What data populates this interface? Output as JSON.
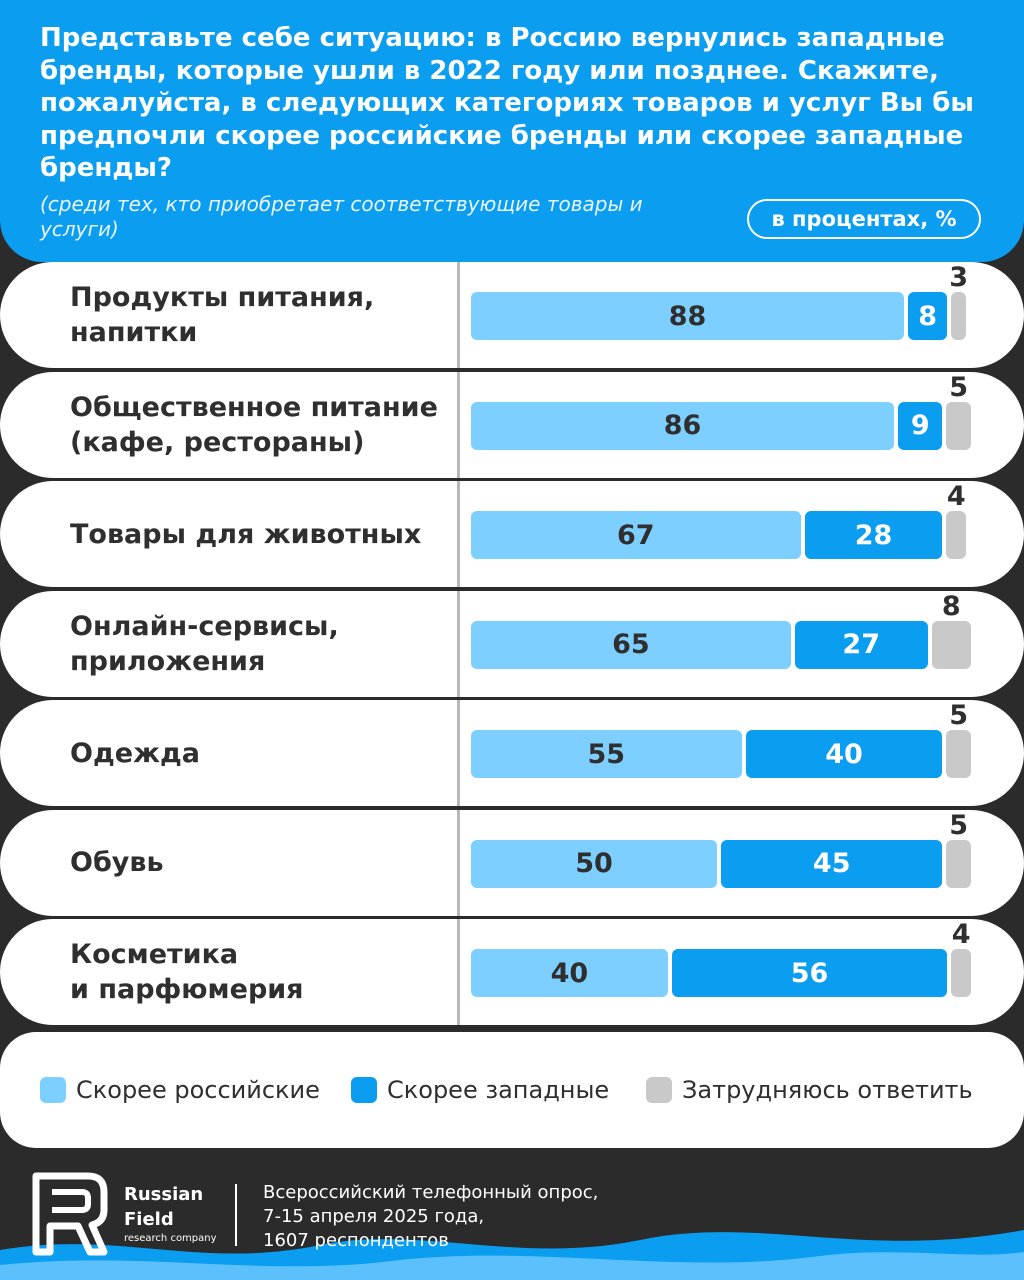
{
  "header": {
    "question": "Представьте себе ситуацию: в Россию вернулись западные бренды, которые ушли в 2022 году или позднее. Скажите, пожалуйста, в следующих категориях товаров и услуг Вы бы предпочли скорее российские бренды или скорее западные бренды?",
    "note": "(среди тех, кто приобретает соответствующие товары и услуги)",
    "unit": "в процентах, %"
  },
  "chart_data": {
    "type": "bar",
    "orientation": "horizontal-stacked",
    "categories": [
      "Продукты питания,\nнапитки",
      "Общественное питание\n(кафе, рестораны)",
      "Товары для животных",
      "Онлайн-сервисы,\nприложения",
      "Одежда",
      "Обувь",
      "Косметика\nи парфюмерия"
    ],
    "series": [
      {
        "name": "Скорее российские",
        "color": "#7dcfff",
        "values": [
          88,
          86,
          67,
          65,
          55,
          50,
          40
        ]
      },
      {
        "name": "Скорее западные",
        "color": "#0a9df0",
        "values": [
          8,
          9,
          28,
          27,
          40,
          45,
          56
        ]
      },
      {
        "name": "Затрудняюсь ответить",
        "color": "#c9c9c9",
        "values": [
          3,
          5,
          4,
          8,
          5,
          5,
          4
        ]
      }
    ],
    "legend": "bottom"
  },
  "footer": {
    "brand_line1": "Russian",
    "brand_line2": "Field",
    "brand_sub": "research company",
    "survey_line1": "Всероссийский телефонный опрос,",
    "survey_line2": "7-15 апреля 2025 года,",
    "survey_line3": "1607 респондентов"
  }
}
